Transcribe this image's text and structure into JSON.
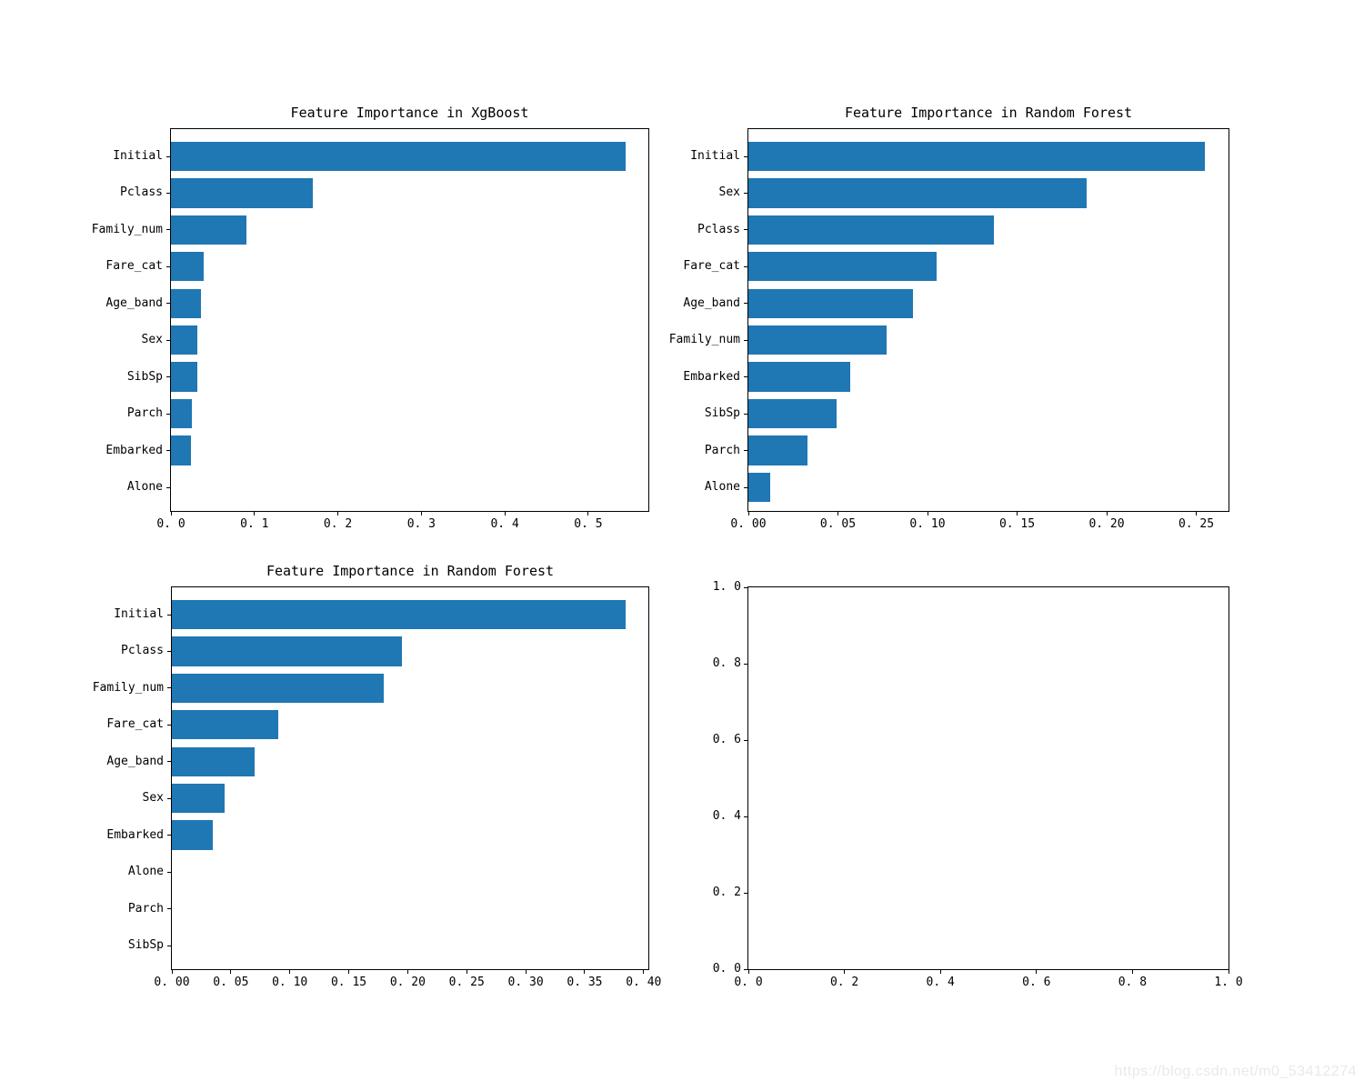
{
  "figure": {
    "background": "#ffffff"
  },
  "colors": {
    "bar": "#1f77b4",
    "axis": "#000000",
    "text": "#000000"
  },
  "watermark": {
    "text": "https://blog.csdn.net/m0_53412274",
    "color": "#e9e9e9"
  },
  "chart_data": [
    {
      "type": "bar",
      "orientation": "horizontal",
      "title": "Feature Importance in XgBoost",
      "categories": [
        "Initial",
        "Pclass",
        "Family_num",
        "Fare_cat",
        "Age_band",
        "Sex",
        "SibSp",
        "Parch",
        "Embarked",
        "Alone"
      ],
      "values": [
        0.545,
        0.17,
        0.09,
        0.039,
        0.036,
        0.032,
        0.032,
        0.025,
        0.024,
        0.0
      ],
      "xlim": [
        0,
        0.572
      ],
      "xticks": {
        "values": [
          0.0,
          0.1,
          0.2,
          0.3,
          0.4,
          0.5
        ],
        "labels": [
          "0.0",
          "0.1",
          "0.2",
          "0.3",
          "0.4",
          "0.5"
        ]
      },
      "grid": false,
      "legend": "none"
    },
    {
      "type": "bar",
      "orientation": "horizontal",
      "title": "Feature Importance in Random Forest",
      "categories": [
        "Initial",
        "Sex",
        "Pclass",
        "Fare_cat",
        "Age_band",
        "Family_num",
        "Embarked",
        "SibSp",
        "Parch",
        "Alone"
      ],
      "values": [
        0.255,
        0.189,
        0.137,
        0.105,
        0.092,
        0.077,
        0.057,
        0.049,
        0.033,
        0.012
      ],
      "xlim": [
        0,
        0.268
      ],
      "xticks": {
        "values": [
          0.0,
          0.05,
          0.1,
          0.15,
          0.2,
          0.25
        ],
        "labels": [
          "0.00",
          "0.05",
          "0.10",
          "0.15",
          "0.20",
          "0.25"
        ]
      },
      "grid": false,
      "legend": "none"
    },
    {
      "type": "bar",
      "orientation": "horizontal",
      "title": "Feature Importance in Random Forest",
      "categories": [
        "Initial",
        "Pclass",
        "Family_num",
        "Fare_cat",
        "Age_band",
        "Sex",
        "Embarked",
        "Alone",
        "Parch",
        "SibSp"
      ],
      "values": [
        0.385,
        0.195,
        0.18,
        0.09,
        0.07,
        0.045,
        0.035,
        0.0,
        0.0,
        0.0
      ],
      "xlim": [
        0,
        0.404
      ],
      "xticks": {
        "values": [
          0.0,
          0.05,
          0.1,
          0.15,
          0.2,
          0.25,
          0.3,
          0.35,
          0.4
        ],
        "labels": [
          "0.00",
          "0.05",
          "0.10",
          "0.15",
          "0.20",
          "0.25",
          "0.30",
          "0.35",
          "0.40"
        ]
      },
      "grid": false,
      "legend": "none"
    },
    {
      "type": "empty",
      "title": "",
      "categories": [],
      "values": [],
      "xlim": [
        0,
        1.0
      ],
      "ylim": [
        0,
        1.0
      ],
      "xticks": {
        "values": [
          0.0,
          0.2,
          0.4,
          0.6,
          0.8,
          1.0
        ],
        "labels": [
          "0.0",
          "0.2",
          "0.4",
          "0.6",
          "0.8",
          "1.0"
        ]
      },
      "yticks": {
        "values": [
          0.0,
          0.2,
          0.4,
          0.6,
          0.8,
          1.0
        ],
        "labels": [
          "0.0",
          "0.2",
          "0.4",
          "0.6",
          "0.8",
          "1.0"
        ]
      },
      "grid": false,
      "legend": "none"
    }
  ]
}
